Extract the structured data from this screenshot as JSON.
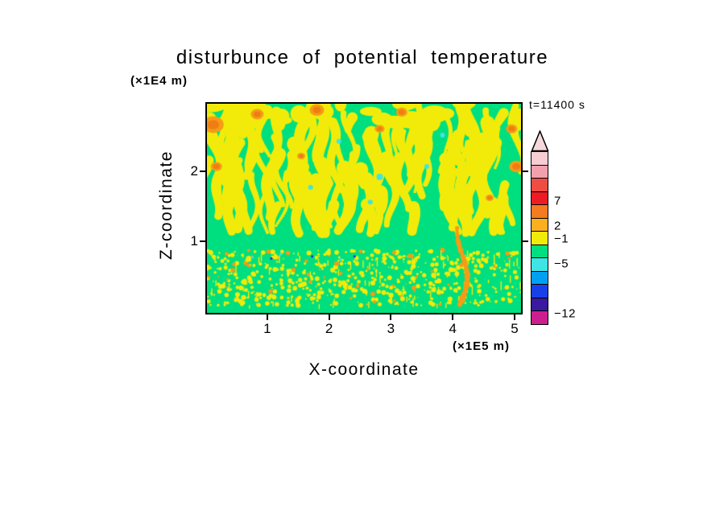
{
  "title": "disturbunce of potential temperature",
  "annotations": {
    "time_label": "t=11400 s"
  },
  "axes": {
    "x": {
      "label": "X-coordinate",
      "unit": "(×1E5 m)",
      "ticks": [
        {
          "value": 1,
          "label": "1"
        },
        {
          "value": 2,
          "label": "2"
        },
        {
          "value": 3,
          "label": "3"
        },
        {
          "value": 4,
          "label": "4"
        },
        {
          "value": 5,
          "label": "5"
        }
      ]
    },
    "z": {
      "label": "Z-coordinate",
      "unit": "(×1E4 m)",
      "ticks": [
        {
          "value": 1,
          "label": "1"
        },
        {
          "value": 2,
          "label": "2"
        }
      ]
    }
  },
  "colorbar": {
    "tip_color": "#F6D8DC",
    "segments": [
      "#F7CCD2",
      "#F2A0AE",
      "#EE4D44",
      "#ED1C24",
      "#F47B20",
      "#FBAF1E",
      "#F2EB0A",
      "#00DF7F",
      "#3FE4E4",
      "#00A0F0",
      "#1840E8",
      "#3A1A9E",
      "#CC1F8E"
    ],
    "labels": [
      {
        "text": "7",
        "after_segment": 4
      },
      {
        "text": "2",
        "after_segment": 6
      },
      {
        "text": "−1",
        "after_segment": 7
      },
      {
        "text": "−5",
        "after_segment": 9
      },
      {
        "text": "−12",
        "after_segment": 13
      }
    ]
  },
  "chart_data": {
    "type": "heatmap",
    "title": "disturbunce of potential temperature",
    "xlabel": "X-coordinate (×1E5 m)",
    "ylabel": "Z-coordinate (×1E4 m)",
    "x_range": [
      0,
      5.13
    ],
    "z_range": [
      0,
      3.0
    ],
    "time": "t=11400 s",
    "levels": [
      -12,
      -5,
      -1,
      2,
      7
    ],
    "palette_note": "pink above 7; red/orange 2..7; yellow -1..2; green/cyan -5..-1; blue/purple/magenta below -5",
    "description": "Turbulent disturbance field: green (near-zero) background; wavy vertical yellow streaks with sparse orange blobs and cyan specks fill the upper half; a clean green band near z≈0.9×1E4 m; fine yellow speckle with small orange patches and a rising orange plume near x≈4.2×1E5 m in the lower quarter; thin green strip along the bottom.",
    "field": {
      "seed": 7,
      "background": "#00DF7F",
      "yellow": "#F2EB0A",
      "orange": "#F49C16",
      "deep_orange": "#EF7D12",
      "cyan": "#3FE4E4",
      "blue": "#2030D8",
      "upper_zone": {
        "v_max": 0.62,
        "streaks": 120,
        "top_blobs": 28
      },
      "orange_blobs": [
        [
          0.02,
          0.1,
          13
        ],
        [
          0.03,
          0.3,
          7
        ],
        [
          0.16,
          0.05,
          8
        ],
        [
          0.35,
          0.03,
          9
        ],
        [
          0.55,
          0.12,
          6
        ],
        [
          0.62,
          0.04,
          7
        ],
        [
          0.97,
          0.12,
          7
        ],
        [
          0.985,
          0.3,
          9
        ],
        [
          0.9,
          0.45,
          5
        ],
        [
          0.3,
          0.25,
          5
        ]
      ],
      "cyan_specks": [
        [
          0.42,
          0.18,
          3
        ],
        [
          0.55,
          0.35,
          4
        ],
        [
          0.7,
          0.3,
          3
        ],
        [
          0.33,
          0.4,
          3
        ],
        [
          0.75,
          0.15,
          3
        ],
        [
          0.52,
          0.47,
          3
        ]
      ],
      "lower_zone": {
        "v_min": 0.7,
        "v_max": 0.965,
        "specks": 620,
        "orange_ratio": 0.09
      },
      "orange_streak": {
        "u": 0.805,
        "v_top": 0.58,
        "v_bottom": 0.96,
        "r": 3
      },
      "blue_specks": [
        [
          0.145,
          0.735
        ],
        [
          0.205,
          0.74
        ],
        [
          0.235,
          0.72
        ],
        [
          0.335,
          0.73
        ],
        [
          0.425,
          0.745
        ],
        [
          0.47,
          0.73
        ]
      ]
    }
  }
}
